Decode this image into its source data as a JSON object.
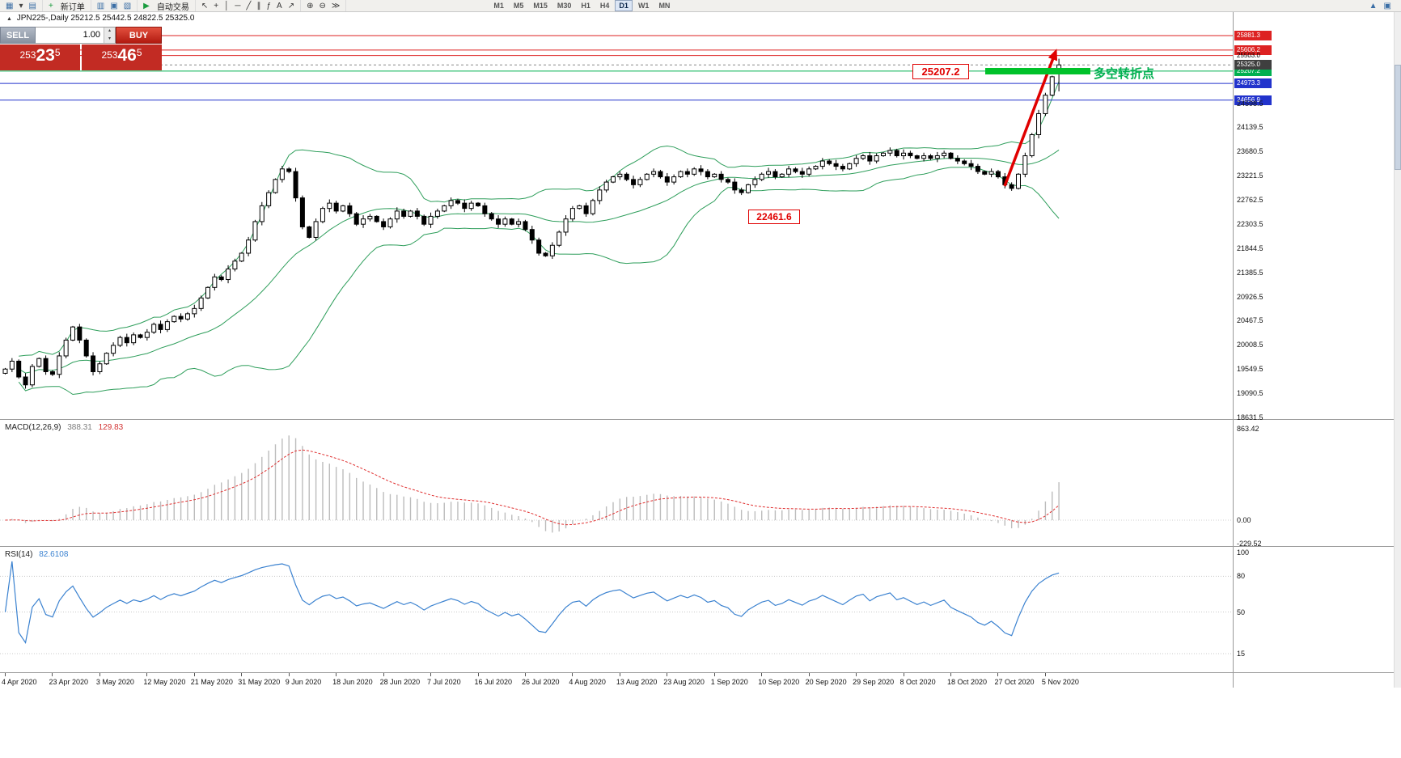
{
  "toolbar": {
    "groups": [
      {
        "items": [
          {
            "icon": "new-chart-icon",
            "glyph": "▦",
            "color": "#3b6ea5"
          },
          {
            "icon": "chart-list-dropdown-icon",
            "glyph": "▾",
            "color": "#444"
          },
          {
            "icon": "profiles-icon",
            "glyph": "▤",
            "color": "#3b6ea5"
          }
        ]
      },
      {
        "items": [
          {
            "icon": "new-order-icon",
            "glyph": "+",
            "color": "#1a9c3e",
            "label": "新订单"
          }
        ]
      },
      {
        "items": [
          {
            "icon": "market-watch-icon",
            "glyph": "▥",
            "color": "#3b6ea5"
          },
          {
            "icon": "data-window-icon",
            "glyph": "▣",
            "color": "#3b6ea5"
          },
          {
            "icon": "terminal-icon",
            "glyph": "▧",
            "color": "#3b6ea5"
          }
        ]
      },
      {
        "items": [
          {
            "icon": "autotrading-icon",
            "glyph": "▶",
            "color": "#1a9c3e",
            "label": "自动交易"
          }
        ]
      },
      {
        "items": [
          {
            "icon": "cursor-icon",
            "glyph": "↖",
            "color": "#333"
          },
          {
            "icon": "crosshair-icon",
            "glyph": "+",
            "color": "#333"
          },
          {
            "icon": "vertical-line-icon",
            "glyph": "│",
            "color": "#333"
          },
          {
            "icon": "horizontal-line-icon",
            "glyph": "─",
            "color": "#333"
          },
          {
            "icon": "trendline-icon",
            "glyph": "╱",
            "color": "#333"
          },
          {
            "icon": "equidistant-channel-icon",
            "glyph": "∥",
            "color": "#333"
          },
          {
            "icon": "fibonacci-icon",
            "glyph": "ƒ",
            "color": "#333"
          },
          {
            "icon": "text-label-icon",
            "glyph": "A",
            "color": "#333"
          },
          {
            "icon": "arrow-object-icon",
            "glyph": "↗",
            "color": "#333"
          }
        ]
      },
      {
        "items": [
          {
            "icon": "zoom-in-icon",
            "glyph": "⊕",
            "color": "#333"
          },
          {
            "icon": "zoom-out-icon",
            "glyph": "⊖",
            "color": "#333"
          },
          {
            "icon": "auto-scroll-icon",
            "glyph": "≫",
            "color": "#333"
          }
        ]
      }
    ],
    "timeframes": [
      "M1",
      "M5",
      "M15",
      "M30",
      "H1",
      "H4",
      "D1",
      "W1",
      "MN"
    ],
    "active_timeframe": "D1",
    "right_icons": [
      {
        "icon": "scroll-up-icon",
        "glyph": "▲",
        "color": "#3b6ea5"
      },
      {
        "icon": "docking-icon",
        "glyph": "▣",
        "color": "#3b6ea5"
      }
    ]
  },
  "chart_header": {
    "symbol_period": "JPN225-,Daily",
    "open": "25212.5",
    "high": "25442.5",
    "low": "24822.5",
    "close": "25325.0"
  },
  "trade_panel": {
    "sell_label": "SELL",
    "buy_label": "BUY",
    "volume": "1.00",
    "sell_price": "25323.5",
    "buy_price": "25346.5"
  },
  "macd_panel": {
    "label": "MACD(12,26,9)",
    "main_value": "388.31",
    "signal_value": "129.83",
    "axis_labels": [
      "863.42",
      "0.00",
      "-229.52"
    ]
  },
  "rsi_panel": {
    "label": "RSI(14)",
    "value": "82.6108",
    "axis_labels": [
      100,
      80,
      50,
      15
    ]
  },
  "annotations": {
    "level_label": "25207.2",
    "turning_point_label": "多空转折点",
    "support_label": "22461.6",
    "support_price": 22461.6
  },
  "chart_data": {
    "type": "candlestick",
    "symbol": "JPN225",
    "timeframe": "Daily",
    "x_labels": [
      "4 Apr 2020",
      "23 Apr 2020",
      "3 May 2020",
      "12 May 2020",
      "21 May 2020",
      "31 May 2020",
      "9 Jun 2020",
      "18 Jun 2020",
      "28 Jun 2020",
      "7 Jul 2020",
      "16 Jul 2020",
      "26 Jul 2020",
      "4 Aug 2020",
      "13 Aug 2020",
      "23 Aug 2020",
      "1 Sep 2020",
      "10 Sep 2020",
      "20 Sep 2020",
      "29 Sep 2020",
      "8 Oct 2020",
      "18 Oct 2020",
      "27 Oct 2020",
      "5 Nov 2020"
    ],
    "candles_per_label": 7,
    "closes": [
      19550,
      19700,
      19400,
      19250,
      19600,
      19750,
      19500,
      19450,
      19800,
      20100,
      20350,
      20100,
      19800,
      19500,
      19650,
      19850,
      20000,
      20150,
      20050,
      20200,
      20150,
      20250,
      20400,
      20300,
      20450,
      20550,
      20500,
      20600,
      20700,
      20900,
      21100,
      21300,
      21250,
      21450,
      21600,
      21750,
      22000,
      22350,
      22650,
      22900,
      23150,
      23350,
      23300,
      22800,
      22250,
      22050,
      22350,
      22600,
      22700,
      22550,
      22650,
      22500,
      22300,
      22400,
      22450,
      22350,
      22250,
      22400,
      22550,
      22450,
      22550,
      22450,
      22300,
      22450,
      22550,
      22650,
      22750,
      22700,
      22600,
      22700,
      22650,
      22500,
      22400,
      22300,
      22400,
      22300,
      22350,
      22200,
      22000,
      21750,
      21700,
      21900,
      22150,
      22400,
      22600,
      22650,
      22500,
      22750,
      22950,
      23100,
      23200,
      23250,
      23150,
      23050,
      23150,
      23250,
      23300,
      23200,
      23100,
      23200,
      23300,
      23250,
      23350,
      23300,
      23200,
      23250,
      23150,
      23100,
      22950,
      22900,
      23050,
      23150,
      23250,
      23300,
      23200,
      23250,
      23350,
      23300,
      23250,
      23350,
      23400,
      23500,
      23450,
      23400,
      23350,
      23450,
      23550,
      23600,
      23500,
      23600,
      23650,
      23700,
      23600,
      23650,
      23600,
      23550,
      23600,
      23550,
      23600,
      23650,
      23550,
      23500,
      23450,
      23400,
      23300,
      23250,
      23300,
      23200,
      23050,
      22980,
      23250,
      23600,
      24000,
      24400,
      24750,
      25100,
      25325
    ],
    "last_candle": {
      "open": 25212.5,
      "high": 25442.5,
      "low": 24822.5,
      "close": 25325.0
    },
    "current_price": {
      "value": 25325.0,
      "label": "25325.0"
    },
    "levels": [
      {
        "price": 25881.3,
        "label": "25881.3",
        "line_color": "#dd2222",
        "badge": "red"
      },
      {
        "price": 25606.2,
        "label": "25606.2",
        "line_color": "#dd2222",
        "badge": "red"
      },
      {
        "price": 25503.0,
        "label": "25503.0",
        "line_color": "#dd2222",
        "badge": "plain"
      },
      {
        "price": 25207.2,
        "label": "25207.2",
        "line_color": "#00b050",
        "badge": "green"
      },
      {
        "price": 24973.3,
        "label": "24973.3",
        "line_color": "#2233cc",
        "badge": "blue"
      },
      {
        "price": 24656.9,
        "label": "24656.9",
        "line_color": "#2233cc",
        "badge": "blue"
      }
    ],
    "y_axis_labels": [
      24598.5,
      24139.5,
      23680.5,
      23221.5,
      22762.5,
      22303.5,
      21844.5,
      21385.5,
      20926.5,
      20467.5,
      20008.5,
      19549.5,
      19090.5,
      18631.5
    ],
    "indicators": {
      "bollinger": {
        "period": 20,
        "deviation": 2
      },
      "macd": {
        "fast": 12,
        "slow": 26,
        "signal": 9,
        "current_main": 388.31,
        "current_signal": 129.83,
        "axis": {
          "max": 863.42,
          "zero": 0.0,
          "min": -229.52
        }
      },
      "rsi": {
        "period": 14,
        "current": 82.6108,
        "levels": [
          80,
          50,
          15
        ]
      }
    },
    "colors": {
      "bollinger": "#2e9e5b",
      "candle_up_fill": "#ffffff",
      "candle_down_fill": "#000000",
      "candle_border": "#000000",
      "macd_bar": "#bcbcbc",
      "macd_signal": "#e03030",
      "rsi_line": "#3b82d0",
      "annotation_red": "#e00000",
      "highlight_green": "#00c22a"
    }
  }
}
